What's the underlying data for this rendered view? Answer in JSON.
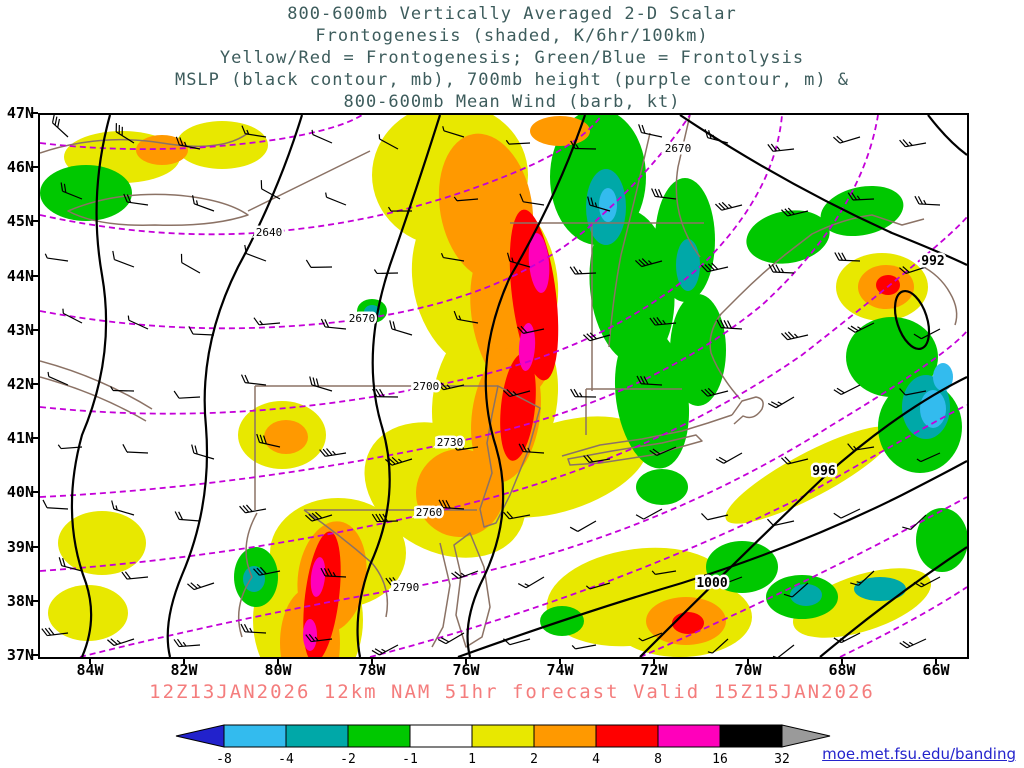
{
  "title": {
    "lines": [
      "800-600mb Vertically Averaged 2-D Scalar",
      "Frontogenesis (shaded, K/6hr/100km)",
      "Yellow/Red = Frontogenesis;  Green/Blue = Frontolysis",
      "MSLP (black contour, mb), 700mb height (purple contour, m) &",
      "800-600mb Mean Wind (barb, kt)"
    ]
  },
  "axes": {
    "lat": [
      "47N",
      "46N",
      "45N",
      "44N",
      "43N",
      "42N",
      "41N",
      "40N",
      "39N",
      "38N",
      "37N"
    ],
    "lon": [
      "84W",
      "82W",
      "80W",
      "78W",
      "76W",
      "74W",
      "72W",
      "70W",
      "68W",
      "66W"
    ]
  },
  "colorbar": {
    "labels": [
      "-8",
      "-4",
      "-2",
      "-1",
      "1",
      "2",
      "4",
      "8",
      "16",
      "32"
    ],
    "arrow_left_color": "#2222cc",
    "arrow_right_color": "#9a9a9a",
    "segment_colors": [
      "#33bbee",
      "#00a8a8",
      "#00c800",
      "#ffffff",
      "#e8e800",
      "#ff9900",
      "#ff0000",
      "#ff00bb",
      "#000000"
    ]
  },
  "overlays": {
    "mslp_labels": [
      "992",
      "996",
      "1000"
    ],
    "height_labels": [
      "2640",
      "2670",
      "2670",
      "2700",
      "2730",
      "2760",
      "2790"
    ]
  },
  "footer": {
    "model_text": "12Z13JAN2026 12km NAM 51hr forecast Valid 15Z15JAN2026"
  },
  "credit": {
    "text": "moe.met.fsu.edu/banding"
  },
  "chart_data": {
    "type": "heatmap",
    "title": "800-600mb Vertically Averaged 2-D Scalar Frontogenesis (shaded, K/6hr/100km)",
    "shading": {
      "variable": "frontogenesis",
      "units": "K/6hr/100km",
      "levels": [
        -8,
        -4,
        -2,
        -1,
        1,
        2,
        4,
        8,
        16,
        32
      ],
      "positive_meaning": "Yellow/Red = Frontogenesis",
      "negative_meaning": "Green/Blue = Frontolysis"
    },
    "contours": {
      "mslp_mb": {
        "color": "black",
        "labeled_values": [
          992,
          996,
          1000
        ]
      },
      "height_700mb_m": {
        "color": "purple",
        "labeled_values": [
          2640,
          2670,
          2700,
          2730,
          2760,
          2790
        ],
        "interval": 30
      }
    },
    "wind": {
      "layer": "800-600mb mean wind",
      "symbol": "barb",
      "units": "kt"
    },
    "extent": {
      "lat_range": [
        "37N",
        "47N"
      ],
      "lon_range": [
        "84W",
        "66W"
      ]
    },
    "run": {
      "init": "12Z13JAN2026",
      "model": "12km NAM",
      "forecast_hour": 51,
      "valid": "15Z15JAN2026"
    }
  }
}
